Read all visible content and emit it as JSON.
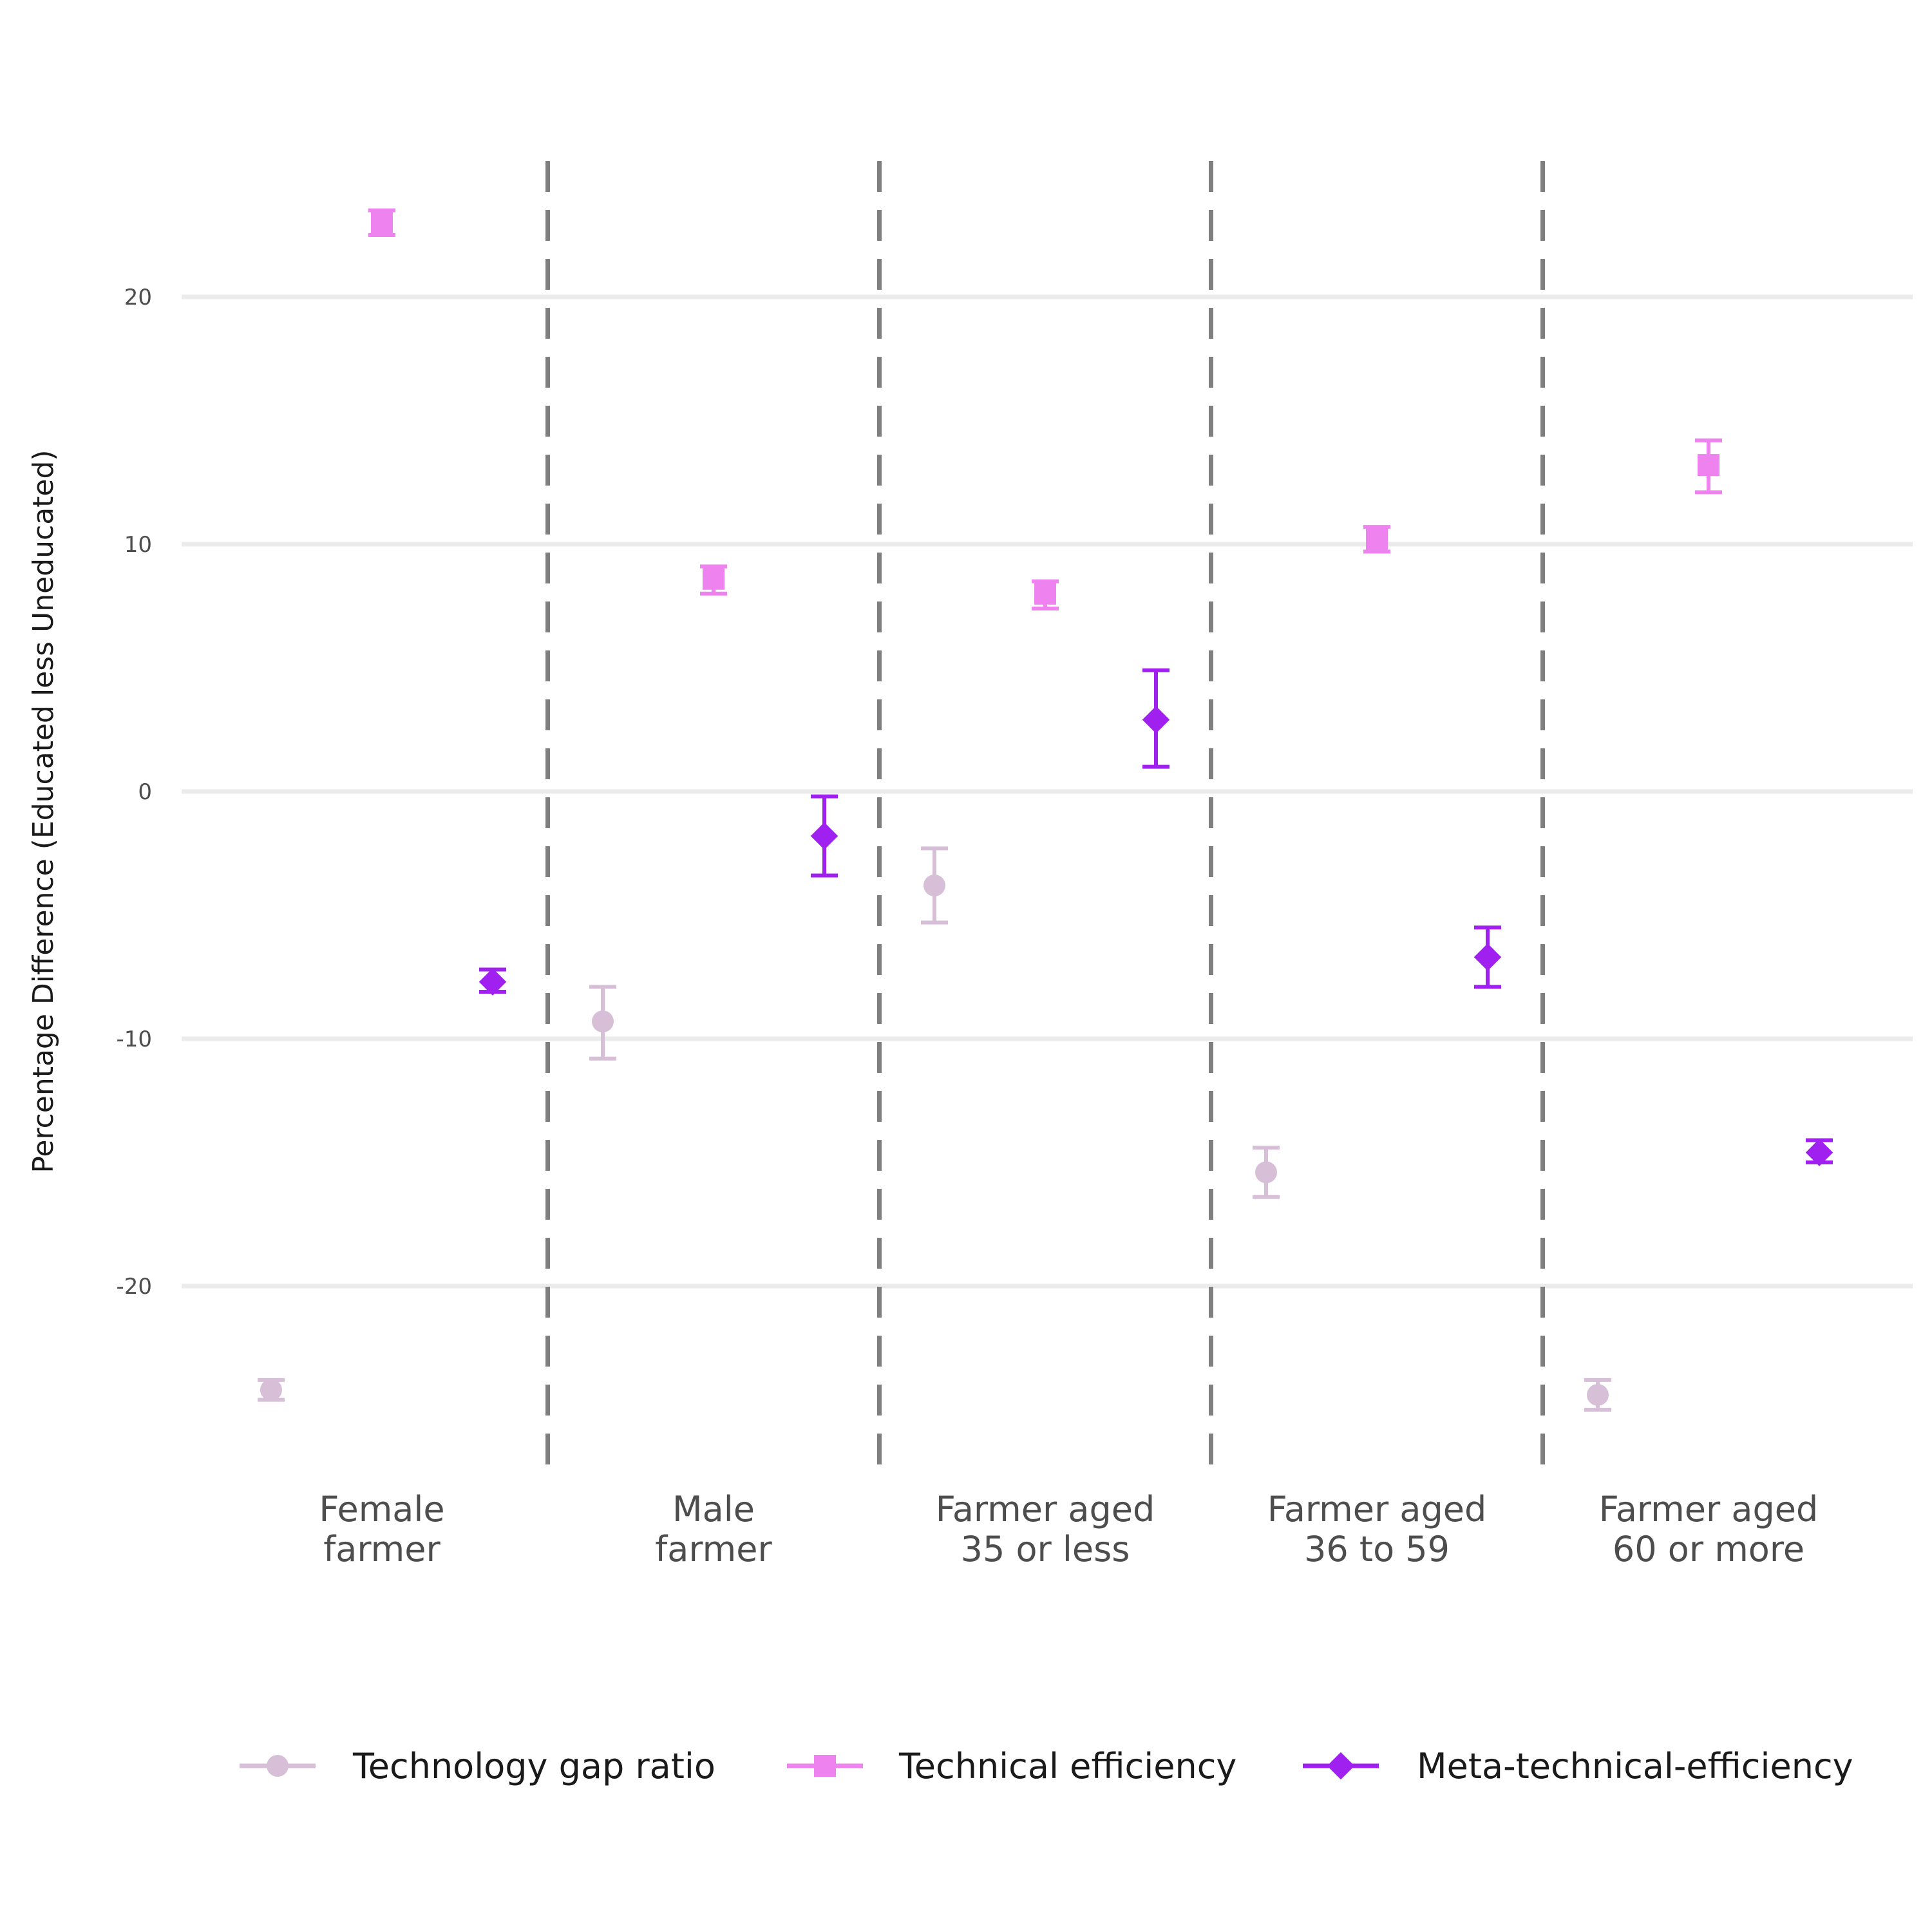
{
  "chart_data": {
    "type": "scatter",
    "title": "",
    "xlabel": "",
    "ylabel": "Percentage Difference (Educated less Uneducated)",
    "ylim": [
      -27.5,
      25.5
    ],
    "yticks": [
      -20,
      -10,
      0,
      10,
      20
    ],
    "grid": true,
    "legend_position": "bottom",
    "categories": [
      [
        "Female",
        "farmer"
      ],
      [
        "Male",
        "farmer"
      ],
      [
        "Farmer aged",
        "35 or less"
      ],
      [
        "Farmer aged",
        "36 to 59"
      ],
      [
        "Farmer aged",
        "60 or more"
      ]
    ],
    "series": [
      {
        "name": "Technology gap ratio",
        "color": "#d8bfd8",
        "shape": "circle",
        "values": [
          -24.2,
          -9.3,
          -3.8,
          -15.4,
          -24.4
        ],
        "lower": [
          -24.6,
          -10.8,
          -5.3,
          -16.4,
          -25.0
        ],
        "upper": [
          -23.8,
          -7.9,
          -2.3,
          -14.4,
          -23.8
        ]
      },
      {
        "name": "Technical efficiency",
        "color": "#ee82ee",
        "shape": "square",
        "values": [
          23.0,
          8.6,
          8.0,
          10.2,
          13.2
        ],
        "lower": [
          22.5,
          8.0,
          7.4,
          9.7,
          12.1
        ],
        "upper": [
          23.5,
          9.1,
          8.5,
          10.7,
          14.2
        ]
      },
      {
        "name": "Meta-technical-efficiency",
        "color": "#a020f0",
        "shape": "diamond",
        "values": [
          -7.7,
          -1.8,
          2.9,
          -6.7,
          -14.6
        ],
        "lower": [
          -8.1,
          -3.4,
          1.0,
          -7.9,
          -15.0
        ],
        "upper": [
          -7.2,
          -0.2,
          4.9,
          -5.5,
          -14.1
        ]
      }
    ]
  }
}
